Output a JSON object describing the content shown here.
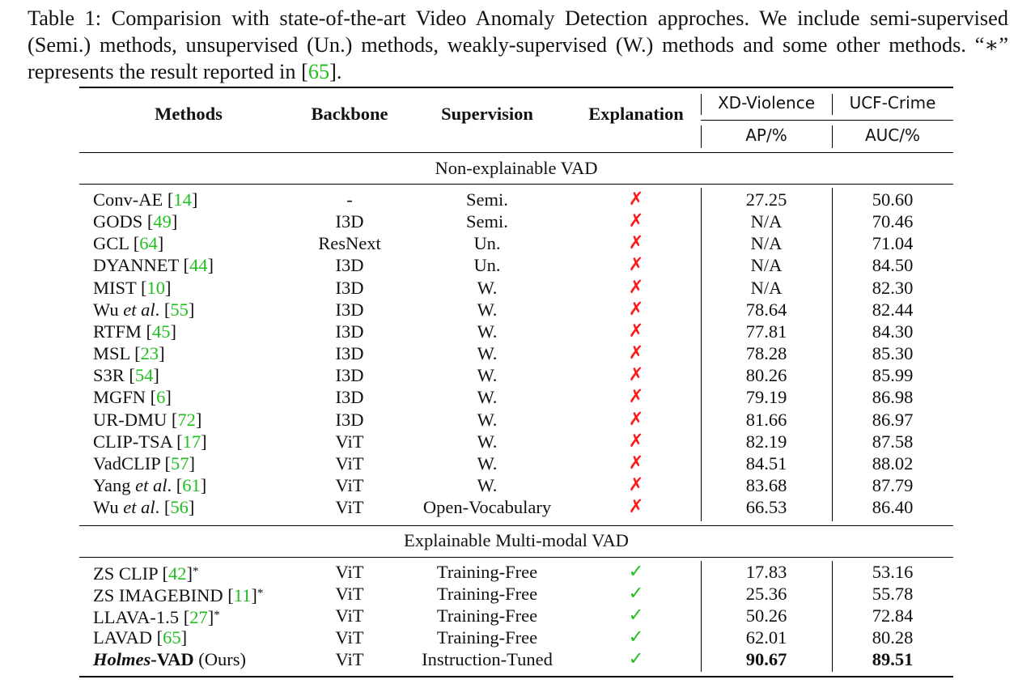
{
  "caption": {
    "part1": "Table 1: Comparision with state-of-the-art Video Anomaly Detection approches. We include semi-supervised (Semi.) methods, unsupervised (Un.) methods, weakly-supervised (W.) methods and some other methods. “∗” represents the result reported in ",
    "ref_open": "[",
    "ref": "65",
    "ref_close": "]",
    "end": "."
  },
  "header": {
    "methods": "Methods",
    "backbone": "Backbone",
    "supervision": "Supervision",
    "explanation": "Explanation",
    "xd": "XD-Violence",
    "ucf": "UCF-Crime",
    "xd_metric": "AP/%",
    "ucf_metric": "AUC/%"
  },
  "sections": {
    "non_explainable": "Non-explainable VAD",
    "explainable": "Explainable Multi-modal VAD"
  },
  "marks": {
    "cross": "✗",
    "check": "✓"
  },
  "rows": [
    {
      "pre": "Conv-AE ",
      "italic": "",
      "post": "",
      "cite": "14",
      "suffix": "",
      "backbone": "-",
      "supervision": "Semi.",
      "explain": "✗",
      "xd": "27.25",
      "ucf": "50.60"
    },
    {
      "pre": "GODS ",
      "italic": "",
      "post": "",
      "cite": "49",
      "suffix": "",
      "backbone": "I3D",
      "supervision": "Semi.",
      "explain": "✗",
      "xd": "N/A",
      "ucf": "70.46"
    },
    {
      "pre": "GCL ",
      "italic": "",
      "post": "",
      "cite": "64",
      "suffix": "",
      "backbone": "ResNext",
      "supervision": "Un.",
      "explain": "✗",
      "xd": "N/A",
      "ucf": "71.04"
    },
    {
      "pre": "DYANNET ",
      "italic": "",
      "post": "",
      "cite": "44",
      "suffix": "",
      "backbone": "I3D",
      "supervision": "Un.",
      "explain": "✗",
      "xd": "N/A",
      "ucf": "84.50"
    },
    {
      "pre": "MIST ",
      "italic": "",
      "post": "",
      "cite": "10",
      "suffix": "",
      "backbone": "I3D",
      "supervision": "W.",
      "explain": "✗",
      "xd": "N/A",
      "ucf": "82.30"
    },
    {
      "pre": "Wu ",
      "italic": "et al",
      "post": ". ",
      "cite": "55",
      "suffix": "",
      "backbone": "I3D",
      "supervision": "W.",
      "explain": "✗",
      "xd": "78.64",
      "ucf": "82.44"
    },
    {
      "pre": "RTFM ",
      "italic": "",
      "post": "",
      "cite": "45",
      "suffix": "",
      "backbone": "I3D",
      "supervision": "W.",
      "explain": "✗",
      "xd": "77.81",
      "ucf": "84.30"
    },
    {
      "pre": "MSL ",
      "italic": "",
      "post": "",
      "cite": "23",
      "suffix": "",
      "backbone": "I3D",
      "supervision": "W.",
      "explain": "✗",
      "xd": "78.28",
      "ucf": "85.30"
    },
    {
      "pre": "S3R ",
      "italic": "",
      "post": "",
      "cite": "54",
      "suffix": "",
      "backbone": "I3D",
      "supervision": "W.",
      "explain": "✗",
      "xd": "80.26",
      "ucf": "85.99"
    },
    {
      "pre": "MGFN ",
      "italic": "",
      "post": "",
      "cite": "6",
      "suffix": "",
      "backbone": "I3D",
      "supervision": "W.",
      "explain": "✗",
      "xd": "79.19",
      "ucf": "86.98"
    },
    {
      "pre": "UR-DMU ",
      "italic": "",
      "post": "",
      "cite": "72",
      "suffix": "",
      "backbone": "I3D",
      "supervision": "W.",
      "explain": "✗",
      "xd": "81.66",
      "ucf": "86.97"
    },
    {
      "pre": "CLIP-TSA ",
      "italic": "",
      "post": "",
      "cite": "17",
      "suffix": "",
      "backbone": "ViT",
      "supervision": "W.",
      "explain": "✗",
      "xd": "82.19",
      "ucf": "87.58"
    },
    {
      "pre": "VadCLIP ",
      "italic": "",
      "post": "",
      "cite": "57",
      "suffix": "",
      "backbone": "ViT",
      "supervision": "W.",
      "explain": "✗",
      "xd": "84.51",
      "ucf": "88.02"
    },
    {
      "pre": "Yang ",
      "italic": "et al",
      "post": ". ",
      "cite": "61",
      "suffix": "",
      "backbone": "ViT",
      "supervision": "W.",
      "explain": "✗",
      "xd": "83.68",
      "ucf": "87.79"
    },
    {
      "pre": "Wu ",
      "italic": "et al",
      "post": ". ",
      "cite": "56",
      "suffix": "",
      "backbone": "ViT",
      "supervision": "Open-Vocabulary",
      "explain": "✗",
      "xd": "66.53",
      "ucf": "86.40"
    }
  ],
  "rows2": [
    {
      "pre": "ZS CLIP ",
      "cite": "42",
      "suffix": "*",
      "backbone": "ViT",
      "supervision": "Training-Free",
      "explain": "✓",
      "xd": "17.83",
      "ucf": "53.16"
    },
    {
      "pre": "ZS IMAGEBIND ",
      "cite": "11",
      "suffix": "*",
      "backbone": "ViT",
      "supervision": "Training-Free",
      "explain": "✓",
      "xd": "25.36",
      "ucf": "55.78"
    },
    {
      "pre": "LLAVA-1.5 ",
      "cite": "27",
      "suffix": "*",
      "backbone": "ViT",
      "supervision": "Training-Free",
      "explain": "✓",
      "xd": "50.26",
      "ucf": "72.84"
    },
    {
      "pre": "LAVAD ",
      "cite": "65",
      "suffix": "",
      "backbone": "ViT",
      "supervision": "Training-Free",
      "explain": "✓",
      "xd": "62.01",
      "ucf": "80.28"
    }
  ],
  "ours": {
    "name_italic": "Holmes",
    "name_bold": "-VAD",
    "tag": " (Ours)",
    "backbone": "ViT",
    "supervision": "Instruction-Tuned",
    "explain": "✓",
    "xd": "90.67",
    "ucf": "89.51"
  },
  "colors": {
    "citation": "#1fbf1f",
    "cross": "#ff1a1a",
    "check": "#1fbf1f"
  }
}
